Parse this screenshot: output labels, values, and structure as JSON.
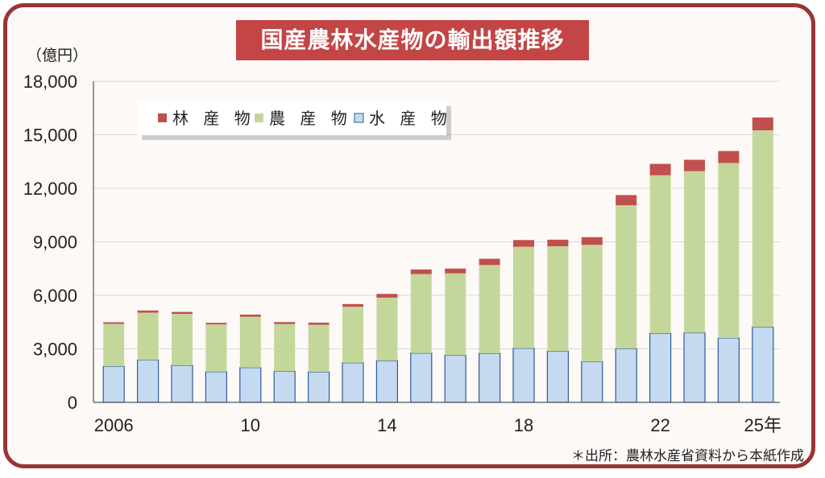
{
  "title": "国産農林水産物の輸出額推移",
  "unit_label": "（億円）",
  "source": "＊出所：農林水産省資料から本紙作成",
  "colors": {
    "forest": "#c0504d",
    "agri": "#c4d79b",
    "fish": "#c5d9f1",
    "fish_stroke": "#2e5c9a",
    "frame": "#9b3434",
    "title_bg": "#c34545"
  },
  "chart_data": {
    "type": "bar",
    "stacked": true,
    "categories": [
      "2006",
      "2007",
      "2008",
      "2009",
      "2010",
      "2011",
      "2012",
      "2013",
      "2014",
      "2015",
      "2016",
      "2017",
      "2018",
      "2019",
      "2020",
      "2021",
      "2022",
      "2023",
      "2024",
      "2025"
    ],
    "x_tick_labels": [
      "2006",
      "",
      "",
      "",
      "10",
      "",
      "",
      "",
      "14",
      "",
      "",
      "",
      "18",
      "",
      "",
      "",
      "22",
      "",
      "",
      "25年"
    ],
    "ylim": [
      0,
      18000
    ],
    "y_ticks": [
      "0",
      "3,000",
      "6,000",
      "9,000",
      "12,000",
      "15,000",
      "18,000"
    ],
    "grid": true,
    "legend_position": "top-left",
    "series": [
      {
        "name": "水 産 物",
        "key": "fish",
        "values": [
          2020,
          2380,
          2080,
          1720,
          1950,
          1740,
          1700,
          2220,
          2340,
          2760,
          2640,
          2750,
          3030,
          2870,
          2280,
          3010,
          3870,
          3900,
          3610,
          4220
        ]
      },
      {
        "name": "農 産 物",
        "key": "agri",
        "values": [
          2380,
          2650,
          2880,
          2650,
          2850,
          2650,
          2650,
          3140,
          3530,
          4430,
          4590,
          4950,
          5690,
          5880,
          6550,
          8040,
          8860,
          9060,
          9810,
          11030
        ]
      },
      {
        "name": "林 産 物",
        "key": "forest",
        "values": [
          90,
          120,
          110,
          90,
          120,
          110,
          120,
          150,
          210,
          260,
          270,
          350,
          380,
          370,
          430,
          570,
          640,
          640,
          670,
          720
        ]
      }
    ]
  }
}
